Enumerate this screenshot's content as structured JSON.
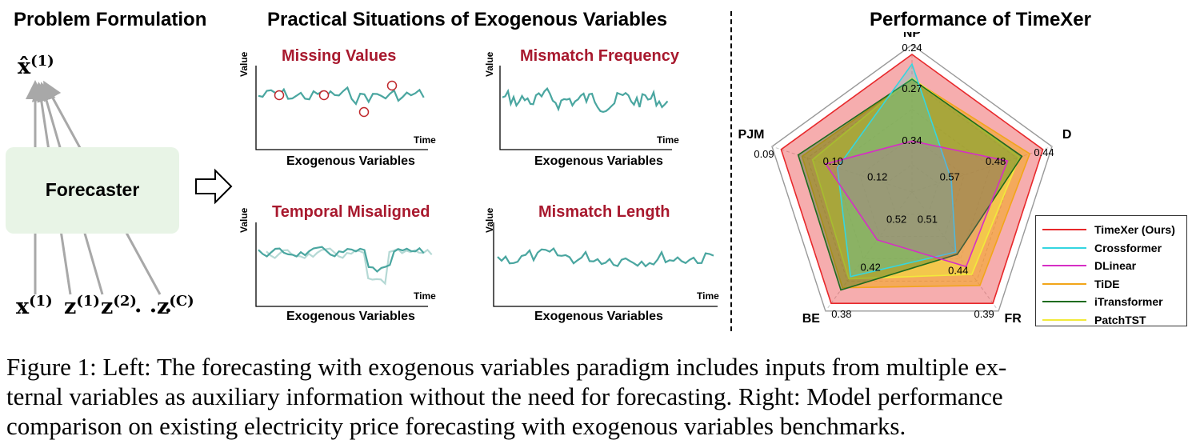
{
  "left": {
    "title": "Problem Formulation",
    "output_symbol": "x̂",
    "output_sup": "(1)",
    "forecaster_label": "Forecaster",
    "inputs": [
      {
        "sym": "x",
        "sup": "(1)"
      },
      {
        "sym": "z",
        "sup": "(1)"
      },
      {
        "sym": "z",
        "sup": "(2)"
      },
      {
        "sym": ". . .",
        "sup": ""
      },
      {
        "sym": "z",
        "sup": "(C)"
      }
    ]
  },
  "middle": {
    "title": "Practical Situations of Exogenous Variables",
    "panels": [
      {
        "title": "Missing Values",
        "ylabel": "Value",
        "xlabel": "Time",
        "caption": "Exogenous Variables"
      },
      {
        "title": "Mismatch Frequency",
        "ylabel": "Value",
        "xlabel": "Time",
        "caption": "Exogenous Variables"
      },
      {
        "title": "Temporal Misaligned",
        "ylabel": "Value",
        "xlabel": "Time",
        "caption": "Exogenous Variables"
      },
      {
        "title": "Mismatch Length",
        "ylabel": "Value",
        "xlabel": "Time",
        "caption": "Exogenous Variables"
      }
    ],
    "line_color": "#4aa6a0",
    "faded_line_color": "#b5d9d5",
    "marker_color": "#c0282c"
  },
  "right": {
    "title": "Performance of TimeXer"
  },
  "chart_data": {
    "type": "radar",
    "title": "Performance of TimeXer",
    "axes": [
      "NP",
      "DE",
      "FR",
      "BE",
      "PJM"
    ],
    "axis_values": {
      "NP": [
        "0.24",
        "0.27",
        "0.34"
      ],
      "DE": [
        "0.44",
        "0.48",
        "0.57"
      ],
      "FR": [
        "0.39",
        "0.44",
        "0.51"
      ],
      "BE": [
        "0.38",
        "0.42",
        "0.52"
      ],
      "PJM": [
        "0.09",
        "0.10",
        "0.12"
      ]
    },
    "series": [
      {
        "name": "TimeXer (Ours)",
        "color": "#e8282b",
        "values": [
          1.0,
          1.0,
          1.0,
          1.0,
          1.0
        ]
      },
      {
        "name": "Crossformer",
        "color": "#35d6e0",
        "values": [
          0.93,
          0.3,
          0.54,
          0.76,
          0.57
        ]
      },
      {
        "name": "DLinear",
        "color": "#d62ec5",
        "values": [
          0.37,
          0.73,
          0.67,
          0.43,
          0.66
        ]
      },
      {
        "name": "TiDE",
        "color": "#f2a51a",
        "values": [
          0.82,
          0.9,
          0.84,
          0.86,
          0.84
        ]
      },
      {
        "name": "iTransformer",
        "color": "#1e6b1e",
        "values": [
          0.82,
          0.84,
          0.56,
          0.88,
          0.87
        ]
      },
      {
        "name": "PatchTST",
        "color": "#f2ea3a",
        "values": [
          0.83,
          0.82,
          0.74,
          0.78,
          0.76
        ]
      }
    ],
    "grid_rings": 5
  },
  "caption": {
    "lines": [
      "Figure 1: Left: The forecasting with exogenous variables paradigm includes inputs from multiple ex-",
      "ternal variables as auxiliary information without the need for forecasting. Right: Model performance",
      "comparison on existing electricity price forecasting with exogenous variables benchmarks."
    ]
  }
}
